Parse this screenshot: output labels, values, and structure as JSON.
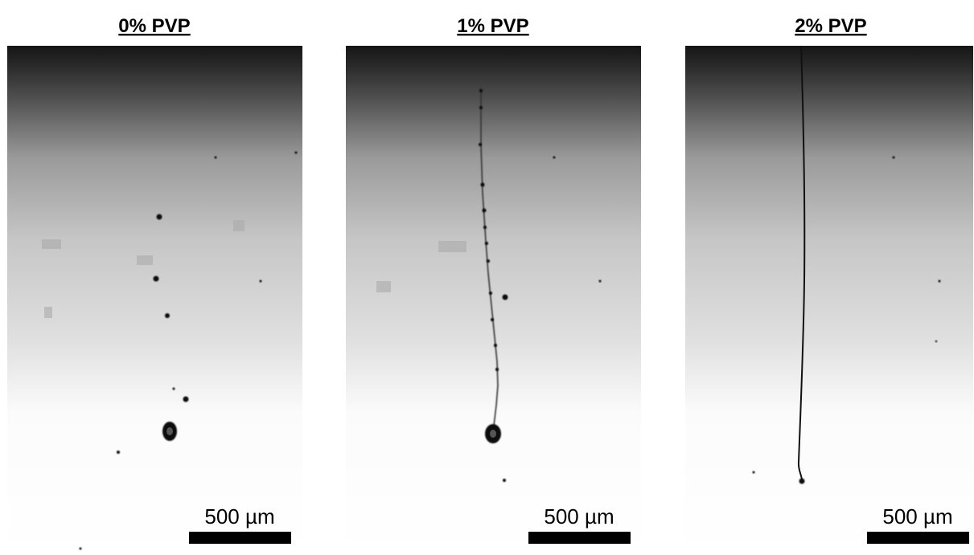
{
  "panels": [
    {
      "title": "0% PVP",
      "scale_label": "500 µm"
    },
    {
      "title": "1% PVP",
      "scale_label": "500 µm"
    },
    {
      "title": "2% PVP",
      "scale_label": "500 µm"
    }
  ]
}
